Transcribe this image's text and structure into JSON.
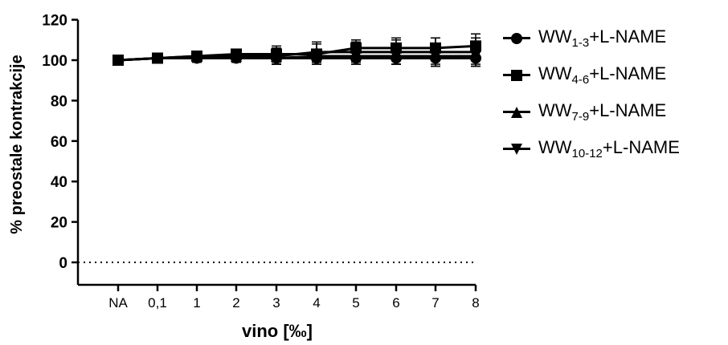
{
  "chart_data": {
    "type": "line",
    "xlabel": "vino [‰]",
    "ylabel": "% preostale kontrakcije",
    "categories": [
      "NA",
      "0,1",
      "1",
      "2",
      "3",
      "4",
      "5",
      "6",
      "7",
      "8"
    ],
    "yticks": [
      0,
      20,
      40,
      60,
      80,
      100,
      120
    ],
    "ylim": [
      -10,
      120
    ],
    "reference_line": {
      "y": 0,
      "style": "dotted"
    },
    "grid": false,
    "legend_position": "right",
    "series": [
      {
        "name": "WW1-3+L-NAME",
        "name_main": "WW",
        "name_sub": "1-3",
        "name_suffix": "+L-NAME",
        "marker": "circle",
        "values": [
          100,
          101,
          101,
          101,
          101,
          101,
          101,
          101,
          101,
          101
        ],
        "errors": [
          1,
          1.5,
          2,
          2,
          3,
          3,
          3,
          3,
          3,
          3
        ]
      },
      {
        "name": "WW4-6+L-NAME",
        "name_main": "WW",
        "name_sub": "4-6",
        "name_suffix": "+L-NAME",
        "marker": "square",
        "values": [
          100,
          101,
          102,
          103,
          103,
          103,
          106,
          106,
          106,
          107
        ],
        "errors": [
          1,
          1.5,
          2,
          2,
          4,
          5,
          4,
          5,
          5,
          6
        ]
      },
      {
        "name": "WW7-9+L-NAME",
        "name_main": "WW",
        "name_sub": "7-9",
        "name_suffix": "+L-NAME",
        "marker": "triangle-up",
        "values": [
          100,
          101,
          102,
          102,
          102,
          104,
          104,
          104,
          104,
          104
        ],
        "errors": [
          1,
          1.5,
          2,
          3,
          4,
          5,
          5,
          6,
          7,
          7
        ]
      },
      {
        "name": "WW10-12+L-NAME",
        "name_main": "WW",
        "name_sub": "10-12",
        "name_suffix": "+L-NAME",
        "marker": "triangle-down",
        "values": [
          100,
          101,
          101,
          101,
          101,
          102,
          102,
          102,
          102,
          102
        ],
        "errors": [
          1,
          1.5,
          2,
          2,
          3,
          3,
          4,
          4,
          5,
          5
        ]
      }
    ]
  }
}
